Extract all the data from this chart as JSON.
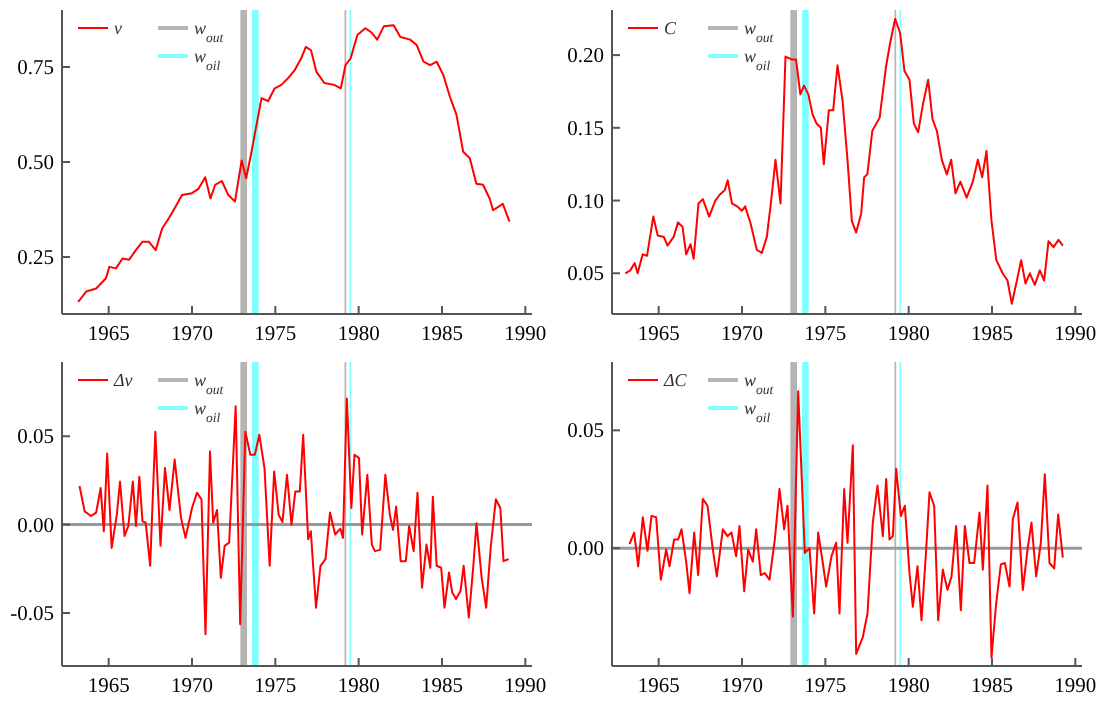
{
  "chart_data": [
    {
      "type": "line",
      "legend": "top left",
      "xlim": [
        1962.2,
        1990.4
      ],
      "xticks": [
        1965,
        1970,
        1975,
        1980,
        1985,
        1990
      ],
      "ylim": [
        0.1,
        0.9
      ],
      "yticks": [
        {
          "value": 0.25,
          "label": "0.25"
        },
        {
          "value": 0.5,
          "label": "0.50"
        },
        {
          "value": 0.75,
          "label": "0.75"
        }
      ],
      "bands": [
        {
          "axis": "x",
          "from": 1972.9,
          "to": 1973.3,
          "label": "w$_{out}$",
          "color": "#b4b4b4"
        },
        {
          "axis": "x",
          "from": 1973.6,
          "to": 1974.0,
          "label": "w$_{oil}$",
          "color": "#80ffff"
        },
        {
          "axis": "x",
          "from": 1979.15,
          "to": 1979.25,
          "color": "#b4b4b4"
        },
        {
          "axis": "x",
          "from": 1979.45,
          "to": 1979.55,
          "color": "#80ffff"
        }
      ],
      "series": [
        {
          "name": "v",
          "color": "#ff0000",
          "x": [
            1963.17,
            1963.65,
            1964.25,
            1964.84,
            1965.04,
            1965.44,
            1965.83,
            1966.23,
            1966.63,
            1967.02,
            1967.42,
            1967.82,
            1968.21,
            1968.61,
            1969.01,
            1969.4,
            1970.0,
            1970.4,
            1970.79,
            1971.11,
            1971.39,
            1971.79,
            1972.18,
            1972.58,
            1972.98,
            1973.25,
            1973.57,
            1974.17,
            1974.56,
            1974.96,
            1975.36,
            1975.75,
            1976.15,
            1976.55,
            1976.83,
            1977.14,
            1977.46,
            1977.94,
            1978.53,
            1978.93,
            1979.21,
            1979.52,
            1979.92,
            1980.4,
            1980.79,
            1981.11,
            1981.51,
            1982.1,
            1982.5,
            1983.1,
            1983.49,
            1983.89,
            1984.29,
            1984.68,
            1985.08,
            1985.48,
            1985.87,
            1986.27,
            1986.67,
            1987.06,
            1987.46,
            1987.86,
            1988.06,
            1988.65,
            1989.05
          ],
          "values": [
            0.132,
            0.159,
            0.167,
            0.194,
            0.224,
            0.22,
            0.246,
            0.243,
            0.268,
            0.29,
            0.29,
            0.268,
            0.325,
            0.352,
            0.382,
            0.413,
            0.418,
            0.43,
            0.46,
            0.404,
            0.44,
            0.45,
            0.413,
            0.396,
            0.504,
            0.457,
            0.527,
            0.668,
            0.66,
            0.694,
            0.703,
            0.72,
            0.741,
            0.773,
            0.803,
            0.794,
            0.738,
            0.708,
            0.703,
            0.694,
            0.755,
            0.773,
            0.834,
            0.852,
            0.84,
            0.822,
            0.857,
            0.86,
            0.829,
            0.822,
            0.807,
            0.764,
            0.755,
            0.764,
            0.729,
            0.671,
            0.624,
            0.527,
            0.51,
            0.443,
            0.44,
            0.404,
            0.373,
            0.39,
            0.343
          ]
        }
      ]
    },
    {
      "type": "line",
      "legend": "top left",
      "xlim": [
        1962.2,
        1990.4
      ],
      "xticks": [
        1965,
        1970,
        1975,
        1980,
        1985,
        1990
      ],
      "ylim": [
        0.022,
        0.231
      ],
      "yticks": [
        {
          "value": 0.05,
          "label": "0.05"
        },
        {
          "value": 0.1,
          "label": "0.10"
        },
        {
          "value": 0.15,
          "label": "0.15"
        },
        {
          "value": 0.2,
          "label": "0.20"
        }
      ],
      "bands": [
        {
          "axis": "x",
          "from": 1972.9,
          "to": 1973.3,
          "label": "w$_{out}$",
          "color": "#b4b4b4"
        },
        {
          "axis": "x",
          "from": 1973.6,
          "to": 1974.0,
          "label": "w$_{oil}$",
          "color": "#80ffff"
        },
        {
          "axis": "x",
          "from": 1979.15,
          "to": 1979.25,
          "color": "#b4b4b4"
        },
        {
          "axis": "x",
          "from": 1979.45,
          "to": 1979.55,
          "color": "#80ffff"
        }
      ],
      "series": [
        {
          "name": "C",
          "color": "#ff0000",
          "x": [
            1963.0,
            1963.3,
            1963.56,
            1963.74,
            1964.04,
            1964.3,
            1964.68,
            1964.94,
            1965.31,
            1965.53,
            1965.9,
            1966.16,
            1966.43,
            1966.65,
            1966.91,
            1967.1,
            1967.39,
            1967.65,
            1968.03,
            1968.4,
            1968.66,
            1968.96,
            1969.14,
            1969.4,
            1969.7,
            1970.0,
            1970.19,
            1970.52,
            1970.89,
            1971.19,
            1971.49,
            1971.75,
            1972.01,
            1972.31,
            1972.61,
            1972.98,
            1973.24,
            1973.5,
            1973.72,
            1973.98,
            1974.24,
            1974.47,
            1974.73,
            1974.91,
            1975.21,
            1975.47,
            1975.73,
            1976.03,
            1976.33,
            1976.59,
            1976.85,
            1977.15,
            1977.33,
            1977.52,
            1977.82,
            1978.26,
            1978.64,
            1978.9,
            1979.19,
            1979.49,
            1979.75,
            1980.05,
            1980.31,
            1980.57,
            1980.87,
            1981.17,
            1981.43,
            1981.69,
            1981.99,
            1982.29,
            1982.55,
            1982.81,
            1983.1,
            1983.48,
            1983.85,
            1984.15,
            1984.41,
            1984.67,
            1984.97,
            1985.26,
            1985.64,
            1985.93,
            1986.19,
            1986.53,
            1986.75,
            1987.01,
            1987.27,
            1987.57,
            1987.87,
            1988.13,
            1988.39,
            1988.69,
            1988.99,
            1989.25
          ],
          "values": [
            0.05,
            0.052,
            0.057,
            0.05,
            0.063,
            0.062,
            0.089,
            0.076,
            0.075,
            0.069,
            0.075,
            0.085,
            0.082,
            0.063,
            0.07,
            0.06,
            0.098,
            0.101,
            0.089,
            0.1,
            0.104,
            0.107,
            0.114,
            0.098,
            0.096,
            0.093,
            0.096,
            0.084,
            0.066,
            0.064,
            0.075,
            0.1,
            0.128,
            0.098,
            0.199,
            0.197,
            0.197,
            0.173,
            0.179,
            0.173,
            0.159,
            0.153,
            0.15,
            0.125,
            0.162,
            0.162,
            0.193,
            0.169,
            0.128,
            0.086,
            0.078,
            0.091,
            0.116,
            0.118,
            0.148,
            0.157,
            0.192,
            0.209,
            0.225,
            0.215,
            0.189,
            0.183,
            0.153,
            0.147,
            0.167,
            0.183,
            0.156,
            0.148,
            0.128,
            0.118,
            0.128,
            0.105,
            0.113,
            0.102,
            0.113,
            0.128,
            0.116,
            0.134,
            0.086,
            0.059,
            0.05,
            0.045,
            0.029,
            0.047,
            0.059,
            0.043,
            0.05,
            0.042,
            0.052,
            0.045,
            0.072,
            0.068,
            0.073,
            0.069
          ]
        }
      ]
    },
    {
      "type": "line",
      "legend": "top left",
      "xlim": [
        1962.2,
        1990.4
      ],
      "xticks": [
        1965,
        1970,
        1975,
        1980,
        1985,
        1990
      ],
      "ylim": [
        -0.08,
        0.092
      ],
      "yticks": [
        {
          "value": -0.05,
          "label": "-0.05"
        },
        {
          "value": 0,
          "label": "0.00"
        },
        {
          "value": 0.05,
          "label": "0.05"
        }
      ],
      "ref_lines": [
        {
          "axis": "y",
          "value": 0,
          "color": "#999999"
        }
      ],
      "bands": [
        {
          "axis": "x",
          "from": 1972.9,
          "to": 1973.3,
          "label": "w$_{out}$",
          "color": "#b4b4b4"
        },
        {
          "axis": "x",
          "from": 1973.6,
          "to": 1974.0,
          "label": "w$_{oil}$",
          "color": "#80ffff"
        },
        {
          "axis": "x",
          "from": 1979.15,
          "to": 1979.25,
          "color": "#b4b4b4"
        },
        {
          "axis": "x",
          "from": 1979.45,
          "to": 1979.55,
          "color": "#80ffff"
        }
      ],
      "series": [
        {
          "name": "Δv",
          "color": "#ff0000",
          "x": [
            1963.25,
            1963.56,
            1963.94,
            1964.25,
            1964.52,
            1964.71,
            1964.91,
            1965.18,
            1965.49,
            1965.68,
            1965.95,
            1966.18,
            1966.45,
            1966.64,
            1966.84,
            1967.03,
            1967.22,
            1967.49,
            1967.8,
            1968.11,
            1968.38,
            1968.65,
            1968.96,
            1969.34,
            1969.61,
            1970.0,
            1970.3,
            1970.57,
            1970.81,
            1971.08,
            1971.27,
            1971.5,
            1971.73,
            1971.96,
            1972.23,
            1972.62,
            1972.89,
            1973.2,
            1973.5,
            1973.77,
            1974.04,
            1974.35,
            1974.66,
            1974.93,
            1975.2,
            1975.43,
            1975.7,
            1975.97,
            1976.2,
            1976.47,
            1976.67,
            1976.97,
            1977.13,
            1977.44,
            1977.71,
            1978.01,
            1978.28,
            1978.59,
            1978.9,
            1979.06,
            1979.29,
            1979.56,
            1979.75,
            1980.02,
            1980.21,
            1980.52,
            1980.79,
            1980.98,
            1981.29,
            1981.6,
            1981.87,
            1982.06,
            1982.25,
            1982.52,
            1982.83,
            1983.03,
            1983.3,
            1983.53,
            1983.8,
            1984.07,
            1984.3,
            1984.45,
            1984.68,
            1984.95,
            1985.15,
            1985.42,
            1985.61,
            1985.84,
            1986.11,
            1986.3,
            1986.61,
            1986.88,
            1987.07,
            1987.38,
            1987.65,
            1987.92,
            1988.23,
            1988.5,
            1988.69,
            1989.0
          ],
          "values": [
            0.0218,
            0.0075,
            0.0049,
            0.0068,
            0.0207,
            -0.0038,
            0.0402,
            -0.0132,
            0.0056,
            0.0244,
            -0.0064,
            -0.0008,
            0.0244,
            -0.0008,
            0.0271,
            0.0019,
            0.0011,
            -0.0233,
            0.0526,
            -0.012,
            0.032,
            0.0083,
            0.0368,
            0.0038,
            -0.0075,
            0.0094,
            0.018,
            0.0143,
            -0.062,
            0.0414,
            0.0011,
            0.0083,
            -0.0301,
            -0.012,
            -0.0102,
            0.0669,
            -0.0564,
            0.0526,
            0.0395,
            0.0395,
            0.0508,
            0.032,
            -0.0233,
            0.0301,
            0.0056,
            0.0015,
            0.0282,
            0,
            0.0188,
            0.0188,
            0.0508,
            -0.0083,
            -0.0038,
            -0.047,
            -0.0233,
            -0.0195,
            0.0068,
            -0.0056,
            -0.0023,
            -0.0075,
            0.0714,
            0.0094,
            0.0395,
            0.0376,
            -0.0056,
            0.0282,
            -0.0113,
            -0.015,
            -0.0143,
            0.0282,
            0.0056,
            -0.003,
            0.0102,
            -0.0207,
            -0.0207,
            -0.0008,
            -0.015,
            0.018,
            -0.0357,
            -0.0113,
            -0.0244,
            0.0158,
            -0.0233,
            -0.0244,
            -0.047,
            -0.0271,
            -0.0383,
            -0.0421,
            -0.0376,
            -0.0233,
            -0.0526,
            -0.0233,
            0.0008,
            -0.0301,
            -0.047,
            -0.0132,
            0.0143,
            0.0094,
            -0.0207,
            -0.0195
          ]
        }
      ]
    },
    {
      "type": "line",
      "legend": "top left",
      "xlim": [
        1962.2,
        1990.4
      ],
      "xticks": [
        1965,
        1970,
        1975,
        1980,
        1985,
        1990
      ],
      "ylim": [
        -0.05,
        0.079
      ],
      "yticks": [
        {
          "value": 0,
          "label": "0.00"
        },
        {
          "value": 0.05,
          "label": "0.05"
        }
      ],
      "ref_lines": [
        {
          "axis": "y",
          "value": 0,
          "color": "#999999"
        }
      ],
      "bands": [
        {
          "axis": "x",
          "from": 1972.9,
          "to": 1973.3,
          "label": "w$_{out}$",
          "color": "#b4b4b4"
        },
        {
          "axis": "x",
          "from": 1973.6,
          "to": 1974.0,
          "label": "w$_{oil}$",
          "color": "#80ffff"
        },
        {
          "axis": "x",
          "from": 1979.15,
          "to": 1979.25,
          "color": "#b4b4b4"
        },
        {
          "axis": "x",
          "from": 1979.45,
          "to": 1979.55,
          "color": "#80ffff"
        }
      ],
      "series": [
        {
          "name": "ΔC",
          "color": "#ff0000",
          "x": [
            1963.25,
            1963.53,
            1963.77,
            1964.05,
            1964.33,
            1964.57,
            1964.85,
            1965.13,
            1965.45,
            1965.65,
            1965.93,
            1966.17,
            1966.37,
            1966.65,
            1966.85,
            1967.13,
            1967.37,
            1967.65,
            1967.93,
            1968.25,
            1968.49,
            1968.85,
            1969.13,
            1969.37,
            1969.65,
            1969.85,
            1970.13,
            1970.37,
            1970.65,
            1970.85,
            1971.13,
            1971.37,
            1971.65,
            1971.97,
            1972.25,
            1972.53,
            1972.73,
            1973.05,
            1973.37,
            1973.77,
            1974.05,
            1974.33,
            1974.57,
            1974.85,
            1975.05,
            1975.37,
            1975.65,
            1975.85,
            1976.13,
            1976.33,
            1976.65,
            1976.85,
            1977.25,
            1977.53,
            1977.85,
            1978.13,
            1978.45,
            1978.65,
            1978.85,
            1979.05,
            1979.25,
            1979.53,
            1979.77,
            1980.05,
            1980.25,
            1980.53,
            1980.77,
            1981.05,
            1981.25,
            1981.53,
            1981.77,
            1982.05,
            1982.33,
            1982.57,
            1982.85,
            1983.13,
            1983.37,
            1983.65,
            1983.93,
            1984.25,
            1984.45,
            1984.73,
            1984.97,
            1985.25,
            1985.53,
            1985.77,
            1986.05,
            1986.25,
            1986.53,
            1986.85,
            1987.13,
            1987.37,
            1987.65,
            1987.93,
            1988.17,
            1988.45,
            1988.73,
            1988.97,
            1989.25
          ],
          "values": [
            0.0017,
            0.0066,
            -0.0077,
            0.0131,
            -0.0011,
            0.0137,
            0.0131,
            -0.0134,
            -0.0006,
            -0.0077,
            0.0037,
            0.0037,
            0.008,
            -0.0057,
            -0.0191,
            0.0066,
            -0.0114,
            0.0209,
            0.018,
            -0.0006,
            -0.012,
            0.008,
            0.0051,
            0.0066,
            -0.0034,
            0.0094,
            -0.0183,
            -0.0006,
            -0.0057,
            0.008,
            -0.0114,
            -0.0106,
            -0.0134,
            0.0037,
            0.0251,
            0.008,
            0.018,
            -0.0291,
            0.0666,
            -0.002,
            0,
            -0.0277,
            0.0066,
            -0.0063,
            -0.0163,
            -0.0034,
            0.0023,
            -0.0277,
            0.0251,
            0.0023,
            0.0437,
            -0.0449,
            -0.0377,
            -0.0277,
            0.0109,
            0.0266,
            0.0051,
            0.0294,
            0.0037,
            0.0051,
            0.0337,
            0.0137,
            0.018,
            -0.0106,
            -0.0249,
            -0.0077,
            -0.0306,
            -0.0006,
            0.0237,
            0.018,
            -0.0306,
            -0.0091,
            -0.0177,
            -0.012,
            0.0094,
            -0.0263,
            0.0094,
            -0.0063,
            -0.0063,
            0.0151,
            -0.0091,
            0.0266,
            -0.0463,
            -0.0234,
            -0.0069,
            -0.0063,
            -0.0163,
            0.0123,
            0.0194,
            -0.0177,
            -0.0006,
            0.0109,
            -0.012,
            0.0023,
            0.0314,
            -0.0063,
            -0.0086,
            0.0143,
            -0.004
          ]
        }
      ]
    }
  ]
}
